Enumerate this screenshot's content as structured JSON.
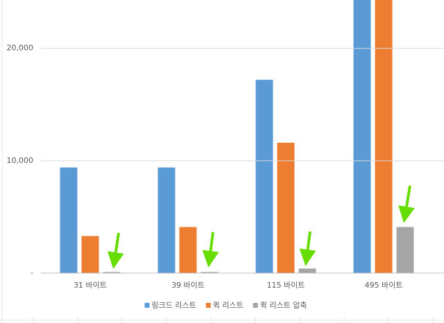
{
  "chart_data": {
    "type": "bar",
    "categories": [
      "31 바이트",
      "39 바이트",
      "115 바이트",
      "495 바이트"
    ],
    "series": [
      {
        "name": "링크드 리스트",
        "color": "#5b9bd5",
        "values": [
          9400,
          9400,
          17200,
          25000
        ]
      },
      {
        "name": "퀵 리스트",
        "color": "#ed7d31",
        "values": [
          3300,
          4100,
          11600,
          25000
        ]
      },
      {
        "name": "퀵 리스트 압축",
        "color": "#a5a5a5",
        "values": [
          100,
          100,
          400,
          4100
        ]
      }
    ],
    "ylim": [
      0,
      24300
    ],
    "yticks": [
      {
        "value": 0,
        "label": "-"
      },
      {
        "value": 10000,
        "label": "10,000"
      },
      {
        "value": 20000,
        "label": "20,000"
      }
    ],
    "grid": true,
    "legend": "bottom"
  }
}
